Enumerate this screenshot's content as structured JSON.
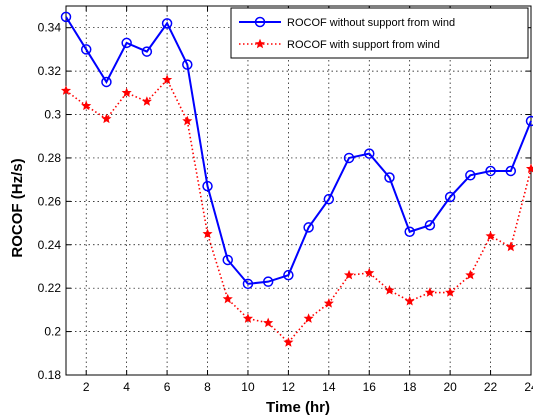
{
  "chart_data": {
    "type": "line",
    "title": "",
    "xlabel": "Time (hr)",
    "ylabel": "ROCOF (Hz/s)",
    "xlim": [
      1,
      24
    ],
    "ylim": [
      0.18,
      0.35
    ],
    "grid": true,
    "legend_position": "top-right",
    "x": [
      1,
      2,
      3,
      4,
      5,
      6,
      7,
      8,
      9,
      10,
      11,
      12,
      13,
      14,
      15,
      16,
      17,
      18,
      19,
      20,
      21,
      22,
      23,
      24
    ],
    "x_ticks": [
      2,
      4,
      6,
      8,
      10,
      12,
      14,
      16,
      18,
      20,
      22,
      24
    ],
    "x_tick_labels": [
      "2",
      "4",
      "6",
      "8",
      "10",
      "12",
      "14",
      "16",
      "18",
      "20",
      "22",
      "24"
    ],
    "y_ticks": [
      0.18,
      0.2,
      0.22,
      0.24,
      0.26,
      0.28,
      0.3,
      0.32,
      0.34
    ],
    "y_tick_labels": [
      "0.18",
      "0.2",
      "0.22",
      "0.24",
      "0.26",
      "0.28",
      "0.3",
      "0.32",
      "0.34"
    ],
    "series": [
      {
        "name": "ROCOF without support from wind",
        "color": "#0000ff",
        "line_style": "solid",
        "marker": "circle",
        "values": [
          0.345,
          0.33,
          0.315,
          0.333,
          0.329,
          0.342,
          0.323,
          0.267,
          0.233,
          0.222,
          0.223,
          0.226,
          0.248,
          0.261,
          0.28,
          0.282,
          0.271,
          0.246,
          0.249,
          0.262,
          0.272,
          0.274,
          0.274,
          0.297
        ]
      },
      {
        "name": "ROCOF with support from wind",
        "color": "#ff0000",
        "line_style": "dotted",
        "marker": "star",
        "values": [
          0.311,
          0.304,
          0.298,
          0.31,
          0.306,
          0.316,
          0.297,
          0.245,
          0.215,
          0.206,
          0.204,
          0.195,
          0.206,
          0.213,
          0.226,
          0.227,
          0.219,
          0.214,
          0.218,
          0.218,
          0.226,
          0.244,
          0.239,
          0.275
        ]
      }
    ]
  }
}
